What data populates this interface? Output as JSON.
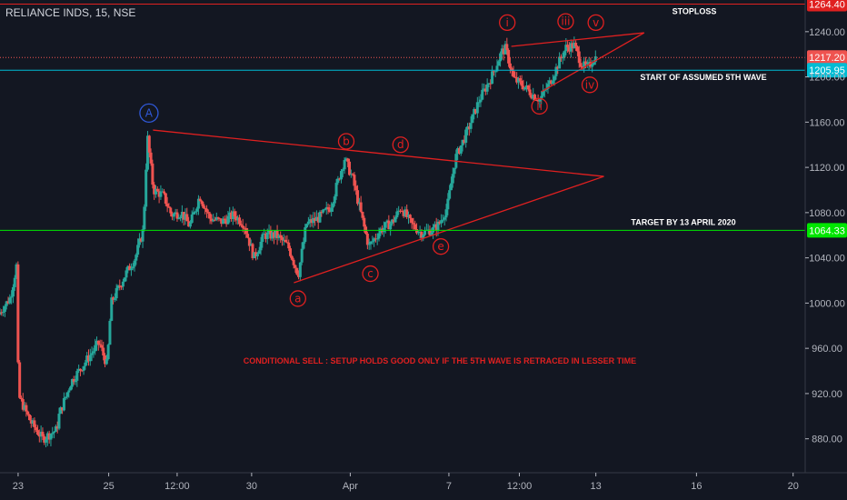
{
  "header": {
    "title": "RELIANCE INDS, 15, NSE"
  },
  "colors": {
    "background": "#131722",
    "up": "#26a69a",
    "down": "#ef5350",
    "annotation_red": "#e02020",
    "cyan": "#00bcd4",
    "green": "#00e600",
    "blue": "#2f58d8"
  },
  "chart_data": {
    "type": "candlestick",
    "title": "RELIANCE INDS, 15, NSE",
    "ylim": [
      850,
      1268
    ],
    "yticks": [
      880,
      920,
      960,
      1000,
      1040,
      1080,
      1120,
      1160,
      1200,
      1240
    ],
    "x_ticks": [
      {
        "label": "23",
        "x": 0.9
      },
      {
        "label": "25",
        "x": 5.4
      },
      {
        "label": "12:00",
        "x": 8.8
      },
      {
        "label": "30",
        "x": 12.5
      },
      {
        "label": "Apr",
        "x": 17.4
      },
      {
        "label": "7",
        "x": 22.3
      },
      {
        "label": "12:00",
        "x": 25.8
      },
      {
        "label": "13",
        "x": 29.6
      },
      {
        "label": "16",
        "x": 34.6
      },
      {
        "label": "20",
        "x": 39.4
      }
    ],
    "horizontal_levels": [
      {
        "value": 1264.4,
        "label": "1264.40",
        "role": "stoploss",
        "text": "STOPLOSS",
        "color": "#e02020"
      },
      {
        "value": 1217.2,
        "label": "1217.20",
        "role": "last price",
        "color": "#ef5350"
      },
      {
        "value": 1205.95,
        "label": "1205.95",
        "role": "start of wave 5",
        "text": "START OF ASSUMED 5TH WAVE",
        "color": "#00bcd4"
      },
      {
        "value": 1064.33,
        "label": "1064.33",
        "role": "target",
        "text": "TARGET BY 13 APRIL 2020",
        "color": "#00e600"
      }
    ],
    "wave_labels": [
      {
        "label": "A",
        "x": 7.4,
        "y": 1168,
        "color": "#2f58d8"
      },
      {
        "label": "a",
        "x": 14.8,
        "y": 1004,
        "color": "#e02020"
      },
      {
        "label": "b",
        "x": 17.2,
        "y": 1143,
        "color": "#e02020"
      },
      {
        "label": "c",
        "x": 18.4,
        "y": 1026,
        "color": "#e02020"
      },
      {
        "label": "d",
        "x": 19.9,
        "y": 1140,
        "color": "#e02020"
      },
      {
        "label": "e",
        "x": 21.9,
        "y": 1050,
        "color": "#e02020"
      },
      {
        "label": "i",
        "x": 25.2,
        "y": 1248,
        "color": "#e02020"
      },
      {
        "label": "ii",
        "x": 26.8,
        "y": 1174,
        "color": "#e02020"
      },
      {
        "label": "iii",
        "x": 28.1,
        "y": 1249,
        "color": "#e02020"
      },
      {
        "label": "iv",
        "x": 29.3,
        "y": 1193,
        "color": "#e02020"
      },
      {
        "label": "v",
        "x": 29.6,
        "y": 1248,
        "color": "#e02020"
      }
    ],
    "trendlines": [
      {
        "from": [
          7.6,
          1153
        ],
        "to": [
          30.0,
          1112
        ]
      },
      {
        "from": [
          14.6,
          1018
        ],
        "to": [
          30.0,
          1112
        ]
      },
      {
        "from": [
          25.4,
          1227
        ],
        "to": [
          32.0,
          1239
        ]
      },
      {
        "from": [
          26.9,
          1187
        ],
        "to": [
          32.0,
          1239
        ]
      }
    ],
    "note": "CONDITIONAL SELL : SETUP HOLDS GOOD ONLY IF THE 5TH WAVE IS RETRACED IN LESSER TIME",
    "anchors": [
      [
        0,
        990
      ],
      [
        0.6,
        1005
      ],
      [
        0.9,
        1033
      ],
      [
        1.0,
        918
      ],
      [
        1.6,
        895
      ],
      [
        2.2,
        880
      ],
      [
        2.9,
        888
      ],
      [
        3.0,
        900
      ],
      [
        3.6,
        930
      ],
      [
        4.4,
        950
      ],
      [
        5.0,
        965
      ],
      [
        5.4,
        945
      ],
      [
        5.6,
        1000
      ],
      [
        6.3,
        1025
      ],
      [
        6.8,
        1040
      ],
      [
        7.2,
        1065
      ],
      [
        7.4,
        1148
      ],
      [
        7.7,
        1100
      ],
      [
        8.2,
        1095
      ],
      [
        8.6,
        1078
      ],
      [
        9.1,
        1080
      ],
      [
        9.5,
        1068
      ],
      [
        10.0,
        1095
      ],
      [
        10.5,
        1075
      ],
      [
        11.1,
        1072
      ],
      [
        11.7,
        1078
      ],
      [
        12.2,
        1070
      ],
      [
        12.7,
        1040
      ],
      [
        13.2,
        1060
      ],
      [
        13.8,
        1060
      ],
      [
        14.4,
        1050
      ],
      [
        14.9,
        1025
      ],
      [
        15.3,
        1070
      ],
      [
        15.9,
        1075
      ],
      [
        16.5,
        1085
      ],
      [
        17.2,
        1128
      ],
      [
        17.6,
        1110
      ],
      [
        18.0,
        1080
      ],
      [
        18.4,
        1050
      ],
      [
        19.0,
        1065
      ],
      [
        19.6,
        1072
      ],
      [
        20.0,
        1085
      ],
      [
        20.5,
        1070
      ],
      [
        21.0,
        1062
      ],
      [
        21.6,
        1065
      ],
      [
        21.9,
        1070
      ],
      [
        22.3,
        1085
      ],
      [
        22.7,
        1128
      ],
      [
        23.3,
        1152
      ],
      [
        23.9,
        1180
      ],
      [
        24.5,
        1200
      ],
      [
        25.0,
        1222
      ],
      [
        25.2,
        1225
      ],
      [
        25.6,
        1198
      ],
      [
        26.1,
        1192
      ],
      [
        26.5,
        1185
      ],
      [
        26.9,
        1180
      ],
      [
        27.4,
        1195
      ],
      [
        27.9,
        1215
      ],
      [
        28.2,
        1226
      ],
      [
        28.6,
        1228
      ],
      [
        29.0,
        1210
      ],
      [
        29.3,
        1208
      ],
      [
        29.6,
        1217.2
      ]
    ]
  }
}
